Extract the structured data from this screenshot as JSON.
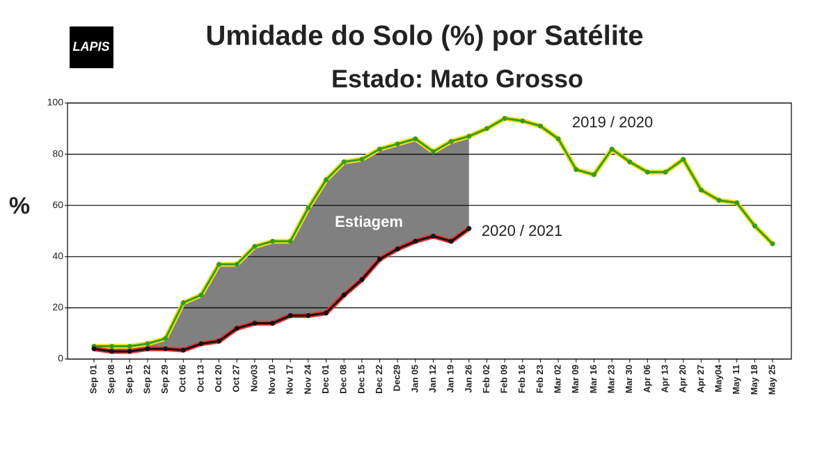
{
  "chart_data": {
    "type": "line",
    "title": "Umidade do Solo (%) por Satélite",
    "subtitle": "Estado: Mato Grosso",
    "logo": "LAPIS",
    "y_label": "%",
    "annotation": "Estiagem",
    "categories": [
      "Sep 01",
      "Sep 08",
      "Sep 15",
      "Sep 22",
      "Sep 29",
      "Oct 06",
      "Oct 13",
      "Oct 20",
      "Oct 27",
      "Nov03",
      "Nov 10",
      "Nov 17",
      "Nov 24",
      "Dec 01",
      "Dec 08",
      "Dec 15",
      "Dec 22",
      "Dec29",
      "Jan 05",
      "Jan 12",
      "Jan 19",
      "Jan 26",
      "Feb 02",
      "Feb 09",
      "Feb 16",
      "Feb 23",
      "Mar 02",
      "Mar 09",
      "Mar 16",
      "Mar 23",
      "Mar 30",
      "Apr 06",
      "Apr 13",
      "Apr 20",
      "Apr 27",
      "May04",
      "May 11",
      "May 18",
      "May 25"
    ],
    "series": [
      {
        "name": "2019 / 2020",
        "color": "#3a9a1a",
        "outline_color": "#f0e020",
        "values": [
          5,
          5,
          5,
          6,
          8,
          22,
          25,
          37,
          37,
          44,
          46,
          46,
          59,
          70,
          77,
          78,
          82,
          84,
          86,
          81,
          85,
          87,
          90,
          94,
          93,
          91,
          86,
          74,
          72,
          82,
          77,
          73,
          73,
          78,
          66,
          62,
          61,
          52,
          45
        ]
      },
      {
        "name": "2020 / 2021",
        "color": "#111111",
        "outline_color": "#e83030",
        "values": [
          4,
          3,
          3,
          4,
          4,
          3.5,
          6,
          7,
          12,
          14,
          14,
          17,
          17,
          18,
          25,
          31,
          39,
          43,
          46,
          48,
          46,
          51,
          null,
          null,
          null,
          null,
          null,
          null,
          null,
          null,
          null,
          null,
          null,
          null,
          null,
          null,
          null,
          null,
          null
        ]
      }
    ],
    "fill_color": "#808080",
    "ylim": [
      0,
      100
    ],
    "yticks": [
      0,
      20,
      40,
      60,
      80,
      100
    ],
    "grid": true
  }
}
